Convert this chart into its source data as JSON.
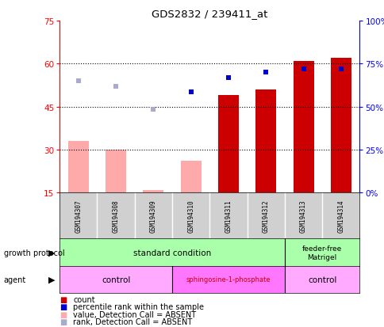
{
  "title": "GDS2832 / 239411_at",
  "samples": [
    "GSM194307",
    "GSM194308",
    "GSM194309",
    "GSM194310",
    "GSM194311",
    "GSM194312",
    "GSM194313",
    "GSM194314"
  ],
  "count_values": [
    33,
    30,
    16,
    26,
    49,
    51,
    61,
    62
  ],
  "count_absent": [
    true,
    true,
    true,
    true,
    false,
    false,
    false,
    false
  ],
  "rank_values": [
    54,
    52,
    44,
    50,
    55,
    57,
    58,
    58
  ],
  "rank_absent": [
    true,
    true,
    true,
    false,
    false,
    false,
    false,
    false
  ],
  "left_ylim": [
    15,
    75
  ],
  "left_yticks": [
    15,
    30,
    45,
    60,
    75
  ],
  "right_ylim": [
    0,
    100
  ],
  "right_yticks": [
    0,
    25,
    50,
    75,
    100
  ],
  "right_yticklabels": [
    "0%",
    "25%",
    "50%",
    "75%",
    "100%"
  ],
  "color_bar_present": "#cc0000",
  "color_bar_absent": "#ffaaaa",
  "color_rank_present": "#0000cc",
  "color_rank_absent": "#aaaacc",
  "color_growth": "#aaffaa",
  "color_agent_control": "#ffaaff",
  "color_agent_sphingo": "#ff77ff",
  "legend_items": [
    {
      "color": "#cc0000",
      "label": "count"
    },
    {
      "color": "#0000cc",
      "label": "percentile rank within the sample"
    },
    {
      "color": "#ffaaaa",
      "label": "value, Detection Call = ABSENT"
    },
    {
      "color": "#aaaacc",
      "label": "rank, Detection Call = ABSENT"
    }
  ],
  "fig_width": 4.85,
  "fig_height": 4.14,
  "fig_dpi": 100
}
